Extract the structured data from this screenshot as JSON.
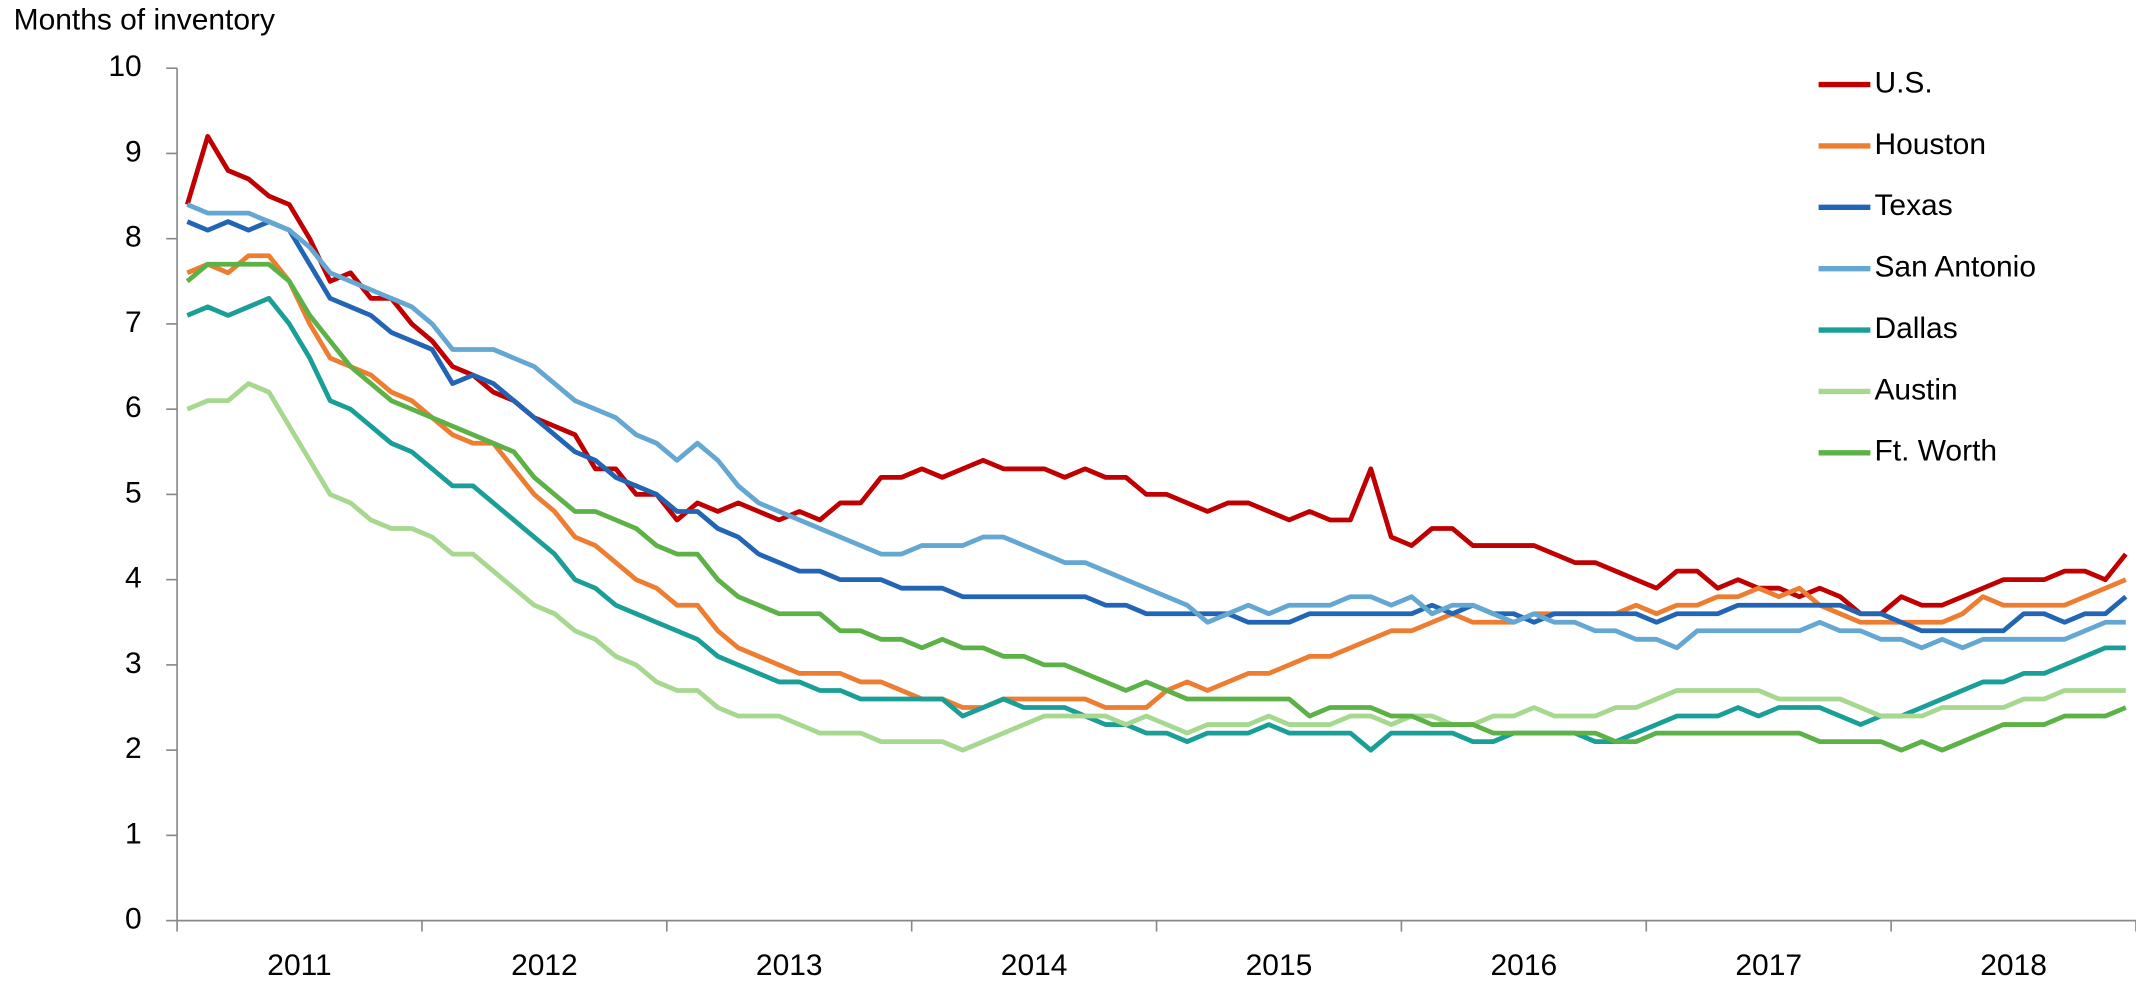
{
  "chart_data": {
    "type": "line",
    "y_axis_label": "Months of inventory",
    "categories": [
      null,
      null,
      null,
      null,
      null,
      null,
      "2011",
      null,
      null,
      null,
      null,
      null,
      null,
      null,
      null,
      null,
      null,
      null,
      "2012",
      null,
      null,
      null,
      null,
      null,
      null,
      null,
      null,
      null,
      null,
      null,
      "2013",
      null,
      null,
      null,
      null,
      null,
      null,
      null,
      null,
      null,
      null,
      null,
      "2014",
      null,
      null,
      null,
      null,
      null,
      null,
      null,
      null,
      null,
      null,
      null,
      "2015",
      null,
      null,
      null,
      null,
      null,
      null,
      null,
      null,
      null,
      null,
      null,
      "2016",
      null,
      null,
      null,
      null,
      null,
      null,
      null,
      null,
      null,
      null,
      null,
      "2017",
      null,
      null,
      null,
      null,
      null,
      null,
      null,
      null,
      null,
      null,
      null,
      "2018",
      null,
      null,
      null,
      null,
      null
    ],
    "ylim": [
      0,
      10
    ],
    "yticks": [
      0,
      1,
      2,
      3,
      4,
      5,
      6,
      7,
      8,
      9,
      10
    ],
    "legend": "top-right",
    "series": [
      {
        "name": "U.S.",
        "color": "#c00000",
        "values": [
          8.4,
          9.2,
          8.8,
          8.7,
          8.5,
          8.4,
          8.0,
          7.5,
          7.6,
          7.3,
          7.3,
          7.0,
          6.8,
          6.5,
          6.4,
          6.2,
          6.1,
          5.9,
          5.8,
          5.7,
          5.3,
          5.3,
          5.0,
          5.0,
          4.7,
          4.9,
          4.8,
          4.9,
          4.8,
          4.7,
          4.8,
          4.7,
          4.9,
          4.9,
          5.2,
          5.2,
          5.3,
          5.2,
          5.3,
          5.4,
          5.3,
          5.3,
          5.3,
          5.2,
          5.3,
          5.2,
          5.2,
          5.0,
          5.0,
          4.9,
          4.8,
          4.9,
          4.9,
          4.8,
          4.7,
          4.8,
          4.7,
          4.7,
          5.3,
          4.5,
          4.4,
          4.6,
          4.6,
          4.4,
          4.4,
          4.4,
          4.4,
          4.3,
          4.2,
          4.2,
          4.1,
          4.0,
          3.9,
          4.1,
          4.1,
          3.9,
          4.0,
          3.9,
          3.9,
          3.8,
          3.9,
          3.8,
          3.6,
          3.6,
          3.8,
          3.7,
          3.7,
          3.8,
          3.9,
          4.0,
          4.0,
          4.0,
          4.1,
          4.1,
          4.0,
          4.3
        ]
      },
      {
        "name": "Houston",
        "color": "#ed7d31",
        "values": [
          7.6,
          7.7,
          7.6,
          7.8,
          7.8,
          7.5,
          7.0,
          6.6,
          6.5,
          6.4,
          6.2,
          6.1,
          5.9,
          5.7,
          5.6,
          5.6,
          5.3,
          5.0,
          4.8,
          4.5,
          4.4,
          4.2,
          4.0,
          3.9,
          3.7,
          3.7,
          3.4,
          3.2,
          3.1,
          3.0,
          2.9,
          2.9,
          2.9,
          2.8,
          2.8,
          2.7,
          2.6,
          2.6,
          2.5,
          2.5,
          2.6,
          2.6,
          2.6,
          2.6,
          2.6,
          2.5,
          2.5,
          2.5,
          2.7,
          2.8,
          2.7,
          2.8,
          2.9,
          2.9,
          3.0,
          3.1,
          3.1,
          3.2,
          3.3,
          3.4,
          3.4,
          3.5,
          3.6,
          3.5,
          3.5,
          3.5,
          3.6,
          3.6,
          3.6,
          3.6,
          3.6,
          3.7,
          3.6,
          3.7,
          3.7,
          3.8,
          3.8,
          3.9,
          3.8,
          3.9,
          3.7,
          3.6,
          3.5,
          3.5,
          3.5,
          3.5,
          3.5,
          3.6,
          3.8,
          3.7,
          3.7,
          3.7,
          3.7,
          3.8,
          3.9,
          4.0
        ]
      },
      {
        "name": "Texas",
        "color": "#2265b5",
        "values": [
          8.2,
          8.1,
          8.2,
          8.1,
          8.2,
          8.1,
          7.7,
          7.3,
          7.2,
          7.1,
          6.9,
          6.8,
          6.7,
          6.3,
          6.4,
          6.3,
          6.1,
          5.9,
          5.7,
          5.5,
          5.4,
          5.2,
          5.1,
          5.0,
          4.8,
          4.8,
          4.6,
          4.5,
          4.3,
          4.2,
          4.1,
          4.1,
          4.0,
          4.0,
          4.0,
          3.9,
          3.9,
          3.9,
          3.8,
          3.8,
          3.8,
          3.8,
          3.8,
          3.8,
          3.8,
          3.7,
          3.7,
          3.6,
          3.6,
          3.6,
          3.6,
          3.6,
          3.5,
          3.5,
          3.5,
          3.6,
          3.6,
          3.6,
          3.6,
          3.6,
          3.6,
          3.7,
          3.6,
          3.7,
          3.6,
          3.6,
          3.5,
          3.6,
          3.6,
          3.6,
          3.6,
          3.6,
          3.5,
          3.6,
          3.6,
          3.6,
          3.7,
          3.7,
          3.7,
          3.7,
          3.7,
          3.7,
          3.6,
          3.6,
          3.5,
          3.4,
          3.4,
          3.4,
          3.4,
          3.4,
          3.6,
          3.6,
          3.5,
          3.6,
          3.6,
          3.8
        ]
      },
      {
        "name": "San Antonio",
        "color": "#63a7d2",
        "values": [
          8.4,
          8.3,
          8.3,
          8.3,
          8.2,
          8.1,
          7.9,
          7.6,
          7.5,
          7.4,
          7.3,
          7.2,
          7.0,
          6.7,
          6.7,
          6.7,
          6.6,
          6.5,
          6.3,
          6.1,
          6.0,
          5.9,
          5.7,
          5.6,
          5.4,
          5.6,
          5.4,
          5.1,
          4.9,
          4.8,
          4.7,
          4.6,
          4.5,
          4.4,
          4.3,
          4.3,
          4.4,
          4.4,
          4.4,
          4.5,
          4.5,
          4.4,
          4.3,
          4.2,
          4.2,
          4.1,
          4.0,
          3.9,
          3.8,
          3.7,
          3.5,
          3.6,
          3.7,
          3.6,
          3.7,
          3.7,
          3.7,
          3.8,
          3.8,
          3.7,
          3.8,
          3.6,
          3.7,
          3.7,
          3.6,
          3.5,
          3.6,
          3.5,
          3.5,
          3.4,
          3.4,
          3.3,
          3.3,
          3.2,
          3.4,
          3.4,
          3.4,
          3.4,
          3.4,
          3.4,
          3.5,
          3.4,
          3.4,
          3.3,
          3.3,
          3.2,
          3.3,
          3.2,
          3.3,
          3.3,
          3.3,
          3.3,
          3.3,
          3.4,
          3.5,
          3.5
        ]
      },
      {
        "name": "Dallas",
        "color": "#1a9e98",
        "values": [
          7.1,
          7.2,
          7.1,
          7.2,
          7.3,
          7.0,
          6.6,
          6.1,
          6.0,
          5.8,
          5.6,
          5.5,
          5.3,
          5.1,
          5.1,
          4.9,
          4.7,
          4.5,
          4.3,
          4.0,
          3.9,
          3.7,
          3.6,
          3.5,
          3.4,
          3.3,
          3.1,
          3.0,
          2.9,
          2.8,
          2.8,
          2.7,
          2.7,
          2.6,
          2.6,
          2.6,
          2.6,
          2.6,
          2.4,
          2.5,
          2.6,
          2.5,
          2.5,
          2.5,
          2.4,
          2.3,
          2.3,
          2.2,
          2.2,
          2.1,
          2.2,
          2.2,
          2.2,
          2.3,
          2.2,
          2.2,
          2.2,
          2.2,
          2.0,
          2.2,
          2.2,
          2.2,
          2.2,
          2.1,
          2.1,
          2.2,
          2.2,
          2.2,
          2.2,
          2.1,
          2.1,
          2.2,
          2.3,
          2.4,
          2.4,
          2.4,
          2.5,
          2.4,
          2.5,
          2.5,
          2.5,
          2.4,
          2.3,
          2.4,
          2.4,
          2.5,
          2.6,
          2.7,
          2.8,
          2.8,
          2.9,
          2.9,
          3.0,
          3.1,
          3.2,
          3.2
        ]
      },
      {
        "name": "Austin",
        "color": "#a7d88f",
        "values": [
          6.0,
          6.1,
          6.1,
          6.3,
          6.2,
          5.8,
          5.4,
          5.0,
          4.9,
          4.7,
          4.6,
          4.6,
          4.5,
          4.3,
          4.3,
          4.1,
          3.9,
          3.7,
          3.6,
          3.4,
          3.3,
          3.1,
          3.0,
          2.8,
          2.7,
          2.7,
          2.5,
          2.4,
          2.4,
          2.4,
          2.3,
          2.2,
          2.2,
          2.2,
          2.1,
          2.1,
          2.1,
          2.1,
          2.0,
          2.1,
          2.2,
          2.3,
          2.4,
          2.4,
          2.4,
          2.4,
          2.3,
          2.4,
          2.3,
          2.2,
          2.3,
          2.3,
          2.3,
          2.4,
          2.3,
          2.3,
          2.3,
          2.4,
          2.4,
          2.3,
          2.4,
          2.4,
          2.3,
          2.3,
          2.4,
          2.4,
          2.5,
          2.4,
          2.4,
          2.4,
          2.5,
          2.5,
          2.6,
          2.7,
          2.7,
          2.7,
          2.7,
          2.7,
          2.6,
          2.6,
          2.6,
          2.6,
          2.5,
          2.4,
          2.4,
          2.4,
          2.5,
          2.5,
          2.5,
          2.5,
          2.6,
          2.6,
          2.7,
          2.7,
          2.7,
          2.7
        ]
      },
      {
        "name": "Ft. Worth",
        "color": "#5cb246",
        "values": [
          7.5,
          7.7,
          7.7,
          7.7,
          7.7,
          7.5,
          7.1,
          6.8,
          6.5,
          6.3,
          6.1,
          6.0,
          5.9,
          5.8,
          5.7,
          5.6,
          5.5,
          5.2,
          5.0,
          4.8,
          4.8,
          4.7,
          4.6,
          4.4,
          4.3,
          4.3,
          4.0,
          3.8,
          3.7,
          3.6,
          3.6,
          3.6,
          3.4,
          3.4,
          3.3,
          3.3,
          3.2,
          3.3,
          3.2,
          3.2,
          3.1,
          3.1,
          3.0,
          3.0,
          2.9,
          2.8,
          2.7,
          2.8,
          2.7,
          2.6,
          2.6,
          2.6,
          2.6,
          2.6,
          2.6,
          2.4,
          2.5,
          2.5,
          2.5,
          2.4,
          2.4,
          2.3,
          2.3,
          2.3,
          2.2,
          2.2,
          2.2,
          2.2,
          2.2,
          2.2,
          2.1,
          2.1,
          2.2,
          2.2,
          2.2,
          2.2,
          2.2,
          2.2,
          2.2,
          2.2,
          2.1,
          2.1,
          2.1,
          2.1,
          2.0,
          2.1,
          2.0,
          2.1,
          2.2,
          2.3,
          2.3,
          2.3,
          2.4,
          2.4,
          2.4,
          2.5
        ]
      }
    ]
  }
}
